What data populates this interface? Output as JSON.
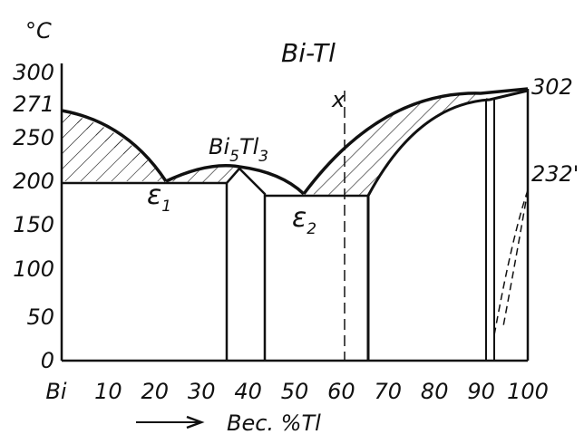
{
  "title": "Bi-Tl",
  "y_unit": "°C",
  "y_ticks": [
    "300",
    "271",
    "250",
    "200",
    "150",
    "100",
    "50",
    "0"
  ],
  "x_ticks": [
    "Bi",
    "10",
    "20",
    "30",
    "40",
    "50",
    "60",
    "70",
    "80",
    "90",
    "100"
  ],
  "x_label": "Вес. %Tl",
  "x_marker": "x",
  "compound": [
    "Bi",
    "5",
    "Tl",
    "3"
  ],
  "eutectic_1": [
    "ε",
    "1"
  ],
  "eutectic_2": [
    "ε",
    "2"
  ],
  "temp_tl": "302",
  "temp_transition": "232'"
}
